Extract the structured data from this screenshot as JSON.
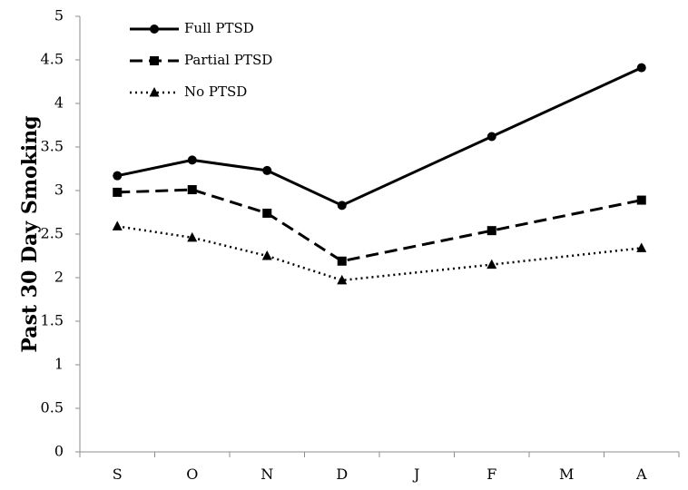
{
  "chart_data": {
    "type": "line",
    "title": "",
    "xlabel": "",
    "ylabel": "Past 30 Day Smoking",
    "ylim": [
      0,
      5
    ],
    "yticks": [
      "0",
      "0.5",
      "1",
      "1.5",
      "2",
      "2.5",
      "3",
      "3.5",
      "4",
      "4.5",
      "5"
    ],
    "categories": [
      "S",
      "O",
      "N",
      "D",
      "J",
      "F",
      "M",
      "A"
    ],
    "grid": false,
    "legend_position": "top-left",
    "series": [
      {
        "name": "Full PTSD",
        "line_style": "solid",
        "marker": "circle",
        "color": "#000000",
        "values": [
          3.17,
          3.35,
          3.23,
          2.83,
          null,
          3.62,
          null,
          4.41
        ]
      },
      {
        "name": "Partial PTSD",
        "line_style": "dashed",
        "marker": "square",
        "color": "#000000",
        "values": [
          2.98,
          3.01,
          2.74,
          2.19,
          null,
          2.54,
          null,
          2.89
        ]
      },
      {
        "name": "No PTSD",
        "line_style": "dotted",
        "marker": "triangle",
        "color": "#000000",
        "values": [
          2.59,
          2.46,
          2.25,
          1.97,
          null,
          2.15,
          null,
          2.34
        ]
      }
    ]
  }
}
